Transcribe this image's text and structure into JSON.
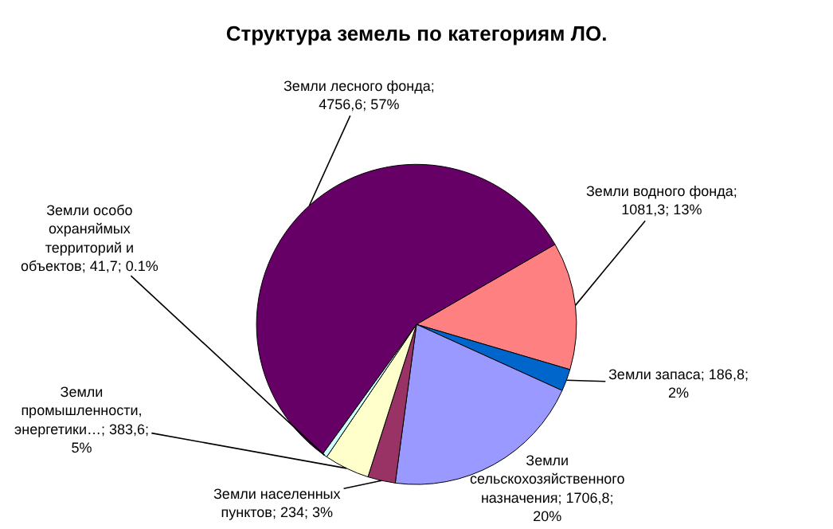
{
  "chart_data": {
    "type": "pie",
    "title": "Структура земель по категориям ЛО.",
    "categories": [
      "Земли водного фонда; 1081,3; 13%",
      "Земли запаса; 186,8; 2%",
      "Земли сельскохозяйственного назначения; 1706,8; 20%",
      "Земли населенных пунктов; 234; 3%",
      "Земли промышленности, энергетики…; 383,6; 5%",
      "Земли особо охраняймых территорий и объектов; 41,7; 0.1%",
      "Земли лесного фонда; 4756,6; 57%"
    ],
    "values": [
      1081.3,
      186.8,
      1706.8,
      234,
      383.6,
      41.7,
      4756.6
    ],
    "colors": [
      "#ff8080",
      "#0066cc",
      "#9999ff",
      "#993366",
      "#ffffcc",
      "#ccffff",
      "#660066"
    ]
  }
}
